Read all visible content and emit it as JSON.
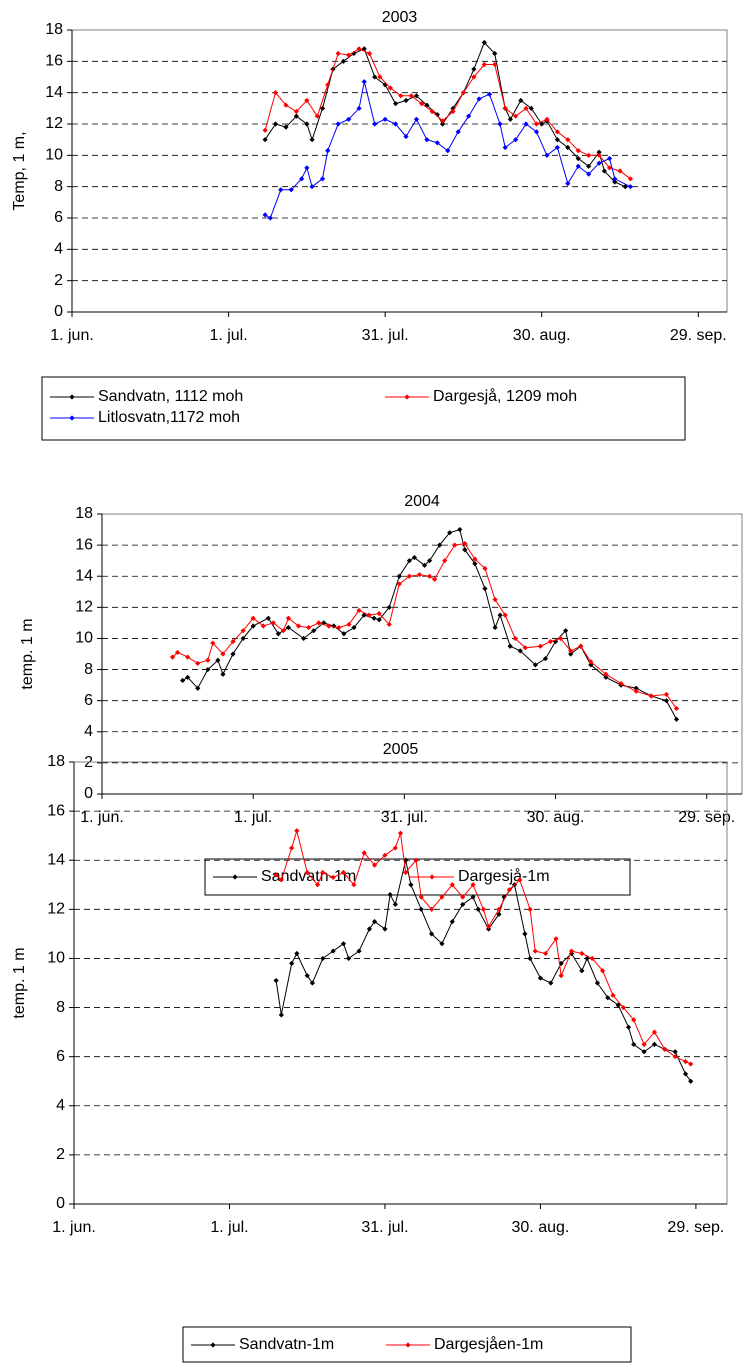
{
  "chart_data": [
    {
      "type": "line",
      "title": "2003",
      "y_label": "Temp, 1 m,",
      "xlim": [
        0,
        125.5
      ],
      "ylim": [
        0,
        18
      ],
      "yticks": [
        0,
        2,
        4,
        6,
        8,
        10,
        12,
        14,
        16,
        18
      ],
      "xticks": [
        {
          "value": 0,
          "label": "1. jun."
        },
        {
          "value": 30,
          "label": "1. jul."
        },
        {
          "value": 60,
          "label": "31. jul."
        },
        {
          "value": 90,
          "label": "30. aug."
        },
        {
          "value": 120,
          "label": "29. sep."
        }
      ],
      "grid": true,
      "series": [
        {
          "name": "Sandvatn, 1112 moh",
          "color": "#000000",
          "x": [
            37,
            39,
            41,
            43,
            45,
            46,
            48,
            50,
            52,
            54,
            56,
            58,
            60,
            62,
            64,
            66,
            68,
            70,
            71,
            73,
            75,
            77,
            79,
            81,
            83,
            84,
            86,
            88,
            90,
            91,
            93,
            95,
            97,
            99,
            101,
            102,
            104,
            106
          ],
          "values": [
            11,
            12,
            11.8,
            12.5,
            12,
            11,
            13,
            15.5,
            16,
            16.5,
            16.8,
            15,
            14.5,
            13.3,
            13.5,
            13.8,
            13.2,
            12.6,
            12,
            13,
            14,
            15.5,
            17.2,
            16.5,
            13,
            12.3,
            13.5,
            13,
            12,
            12.2,
            11,
            10.5,
            9.8,
            9.3,
            10.2,
            9,
            8.3,
            8
          ]
        },
        {
          "name": "Dargesjå, 1209 moh",
          "color": "#ff0000",
          "x": [
            37,
            39,
            41,
            43,
            45,
            47,
            49,
            51,
            53,
            55,
            57,
            59,
            61,
            63,
            65,
            67,
            69,
            71,
            73,
            75,
            77,
            79,
            81,
            83,
            85,
            87,
            89,
            91,
            93,
            95,
            97,
            99,
            101,
            103,
            105,
            107
          ],
          "values": [
            11.6,
            14,
            13.2,
            12.8,
            13.5,
            12.5,
            14.5,
            16.5,
            16.4,
            16.8,
            16.5,
            15,
            14.3,
            13.8,
            13.8,
            13.3,
            12.8,
            12.2,
            12.8,
            14,
            15,
            15.8,
            15.8,
            13,
            12.5,
            13,
            12,
            12.3,
            11.5,
            11,
            10.3,
            10,
            10,
            9.2,
            9,
            8.5
          ]
        },
        {
          "name": "Litlosvatn,1172 moh",
          "color": "#0000ff",
          "x": [
            37,
            38,
            40,
            42,
            44,
            45,
            46,
            48,
            49,
            51,
            53,
            55,
            56,
            58,
            60,
            62,
            64,
            66,
            68,
            70,
            72,
            74,
            76,
            78,
            80,
            82,
            83,
            85,
            87,
            89,
            91,
            93,
            95,
            97,
            99,
            101,
            103,
            104,
            107
          ],
          "values": [
            6.2,
            6,
            7.8,
            7.8,
            8.5,
            9.2,
            8,
            8.5,
            10.3,
            12,
            12.3,
            13,
            14.7,
            12,
            12.3,
            12,
            11.2,
            12.3,
            11,
            10.8,
            10.3,
            11.5,
            12.5,
            13.6,
            13.9,
            12,
            10.5,
            11,
            12,
            11.5,
            10,
            10.5,
            8.2,
            9.3,
            8.8,
            9.5,
            9.8,
            8.5,
            8
          ]
        }
      ]
    },
    {
      "type": "line",
      "title": "2004",
      "y_label": "temp. 1 m",
      "xlim": [
        0,
        127
      ],
      "ylim": [
        0,
        18
      ],
      "yticks": [
        0,
        2,
        4,
        6,
        8,
        10,
        12,
        14,
        16,
        18
      ],
      "xticks": [
        {
          "value": 0,
          "label": "1. jun."
        },
        {
          "value": 30,
          "label": "1. jul."
        },
        {
          "value": 60,
          "label": "31. jul."
        },
        {
          "value": 90,
          "label": "30. aug."
        },
        {
          "value": 120,
          "label": "29. sep."
        }
      ],
      "grid": true,
      "series": [
        {
          "name": "Sandvatn-1m",
          "color": "#000000",
          "x": [
            16,
            17,
            19,
            21,
            23,
            24,
            26,
            28,
            30,
            33,
            35,
            37,
            40,
            42,
            44,
            46,
            48,
            50,
            52,
            54,
            55,
            57,
            59,
            61,
            62,
            64,
            65,
            67,
            69,
            71,
            72,
            74,
            76,
            78,
            79,
            81,
            83,
            86,
            88,
            90,
            92,
            93,
            95,
            97,
            100,
            103,
            106,
            109,
            112,
            114
          ],
          "values": [
            7.3,
            7.5,
            6.8,
            8,
            8.6,
            7.7,
            9,
            10,
            10.8,
            11.3,
            10.3,
            10.7,
            10,
            10.5,
            11,
            10.8,
            10.3,
            10.7,
            11.5,
            11.3,
            11.2,
            12,
            14,
            15,
            15.2,
            14.7,
            15,
            16,
            16.8,
            17,
            15.7,
            14.8,
            13.2,
            10.7,
            11.5,
            9.5,
            9.2,
            8.3,
            8.7,
            9.8,
            10.5,
            9,
            9.5,
            8.3,
            7.5,
            7,
            6.8,
            6.3,
            6,
            4.8
          ]
        },
        {
          "name": "Dargesjå-1m",
          "color": "#ff0000",
          "x": [
            14,
            15,
            17,
            19,
            21,
            22,
            24,
            26,
            28,
            30,
            32,
            34,
            36,
            37,
            39,
            41,
            43,
            45,
            47,
            49,
            51,
            53,
            55,
            57,
            59,
            61,
            63,
            65,
            66,
            68,
            70,
            72,
            74,
            76,
            78,
            80,
            82,
            84,
            87,
            89,
            91,
            93,
            95,
            97,
            100,
            103,
            106,
            109,
            112,
            114
          ],
          "values": [
            8.8,
            9.1,
            8.8,
            8.4,
            8.6,
            9.7,
            9,
            9.8,
            10.5,
            11.3,
            10.8,
            11,
            10.5,
            11.3,
            10.8,
            10.7,
            11,
            10.8,
            10.7,
            10.9,
            11.8,
            11.5,
            11.6,
            10.9,
            13.5,
            14,
            14.1,
            14,
            13.8,
            15,
            16,
            16.1,
            15.1,
            14.5,
            12.5,
            11.5,
            10,
            9.4,
            9.5,
            9.8,
            10,
            9.2,
            9.5,
            8.5,
            7.7,
            7.1,
            6.6,
            6.3,
            6.4,
            5.5
          ]
        }
      ]
    },
    {
      "type": "line",
      "title": "2005",
      "y_label": "temp. 1 m",
      "xlim": [
        0,
        126
      ],
      "ylim": [
        0,
        18
      ],
      "yticks": [
        0,
        2,
        4,
        6,
        8,
        10,
        12,
        14,
        16,
        18
      ],
      "xticks": [
        {
          "value": 0,
          "label": "1. jun."
        },
        {
          "value": 30,
          "label": "1. jul."
        },
        {
          "value": 60,
          "label": "31. jul."
        },
        {
          "value": 90,
          "label": "30. aug."
        },
        {
          "value": 120,
          "label": "29. sep."
        }
      ],
      "grid": true,
      "series": [
        {
          "name": "Sandvatn-1m",
          "color": "#000000",
          "x": [
            39,
            40,
            42,
            43,
            45,
            46,
            48,
            50,
            52,
            53,
            55,
            57,
            58,
            60,
            61,
            62,
            64,
            65,
            67,
            69,
            71,
            73,
            75,
            77,
            78,
            80,
            82,
            83,
            85,
            87,
            88,
            90,
            92,
            94,
            96,
            98,
            99,
            101,
            103,
            105,
            107,
            108,
            110,
            112,
            114,
            116,
            118,
            119
          ],
          "values": [
            9.1,
            7.7,
            9.8,
            10.2,
            9.3,
            9,
            10,
            10.3,
            10.6,
            10,
            10.3,
            11.2,
            11.5,
            11.2,
            12.6,
            12.2,
            14,
            13,
            12,
            11,
            10.6,
            11.5,
            12.2,
            12.5,
            12,
            11.2,
            11.8,
            12.5,
            13,
            11,
            10,
            9.2,
            9,
            9.8,
            10.2,
            9.5,
            10,
            9,
            8.4,
            8.1,
            7.2,
            6.5,
            6.2,
            6.5,
            6.3,
            6.2,
            5.3,
            5
          ]
        },
        {
          "name": "Dargesjåen-1m",
          "color": "#ff0000",
          "x": [
            39,
            40,
            42,
            43,
            45,
            47,
            48,
            50,
            52,
            54,
            56,
            58,
            60,
            62,
            63,
            64,
            66,
            67,
            69,
            71,
            73,
            75,
            77,
            79,
            80,
            82,
            84,
            86,
            88,
            89,
            91,
            93,
            94,
            96,
            98,
            100,
            102,
            104,
            106,
            108,
            110,
            112,
            114,
            116,
            118,
            119
          ],
          "values": [
            13.4,
            13.2,
            14.5,
            15.2,
            13.5,
            13,
            13.5,
            13.3,
            13.5,
            13,
            14.3,
            13.8,
            14.2,
            14.5,
            15.1,
            13.5,
            14,
            12.5,
            12,
            12.5,
            13,
            12.5,
            13,
            12,
            11.3,
            12,
            12.8,
            13.2,
            12,
            10.3,
            10.2,
            10.8,
            9.3,
            10.3,
            10.2,
            10,
            9.5,
            8.5,
            8,
            7.5,
            6.5,
            7,
            6.3,
            6,
            5.8,
            5.7
          ]
        }
      ]
    }
  ]
}
